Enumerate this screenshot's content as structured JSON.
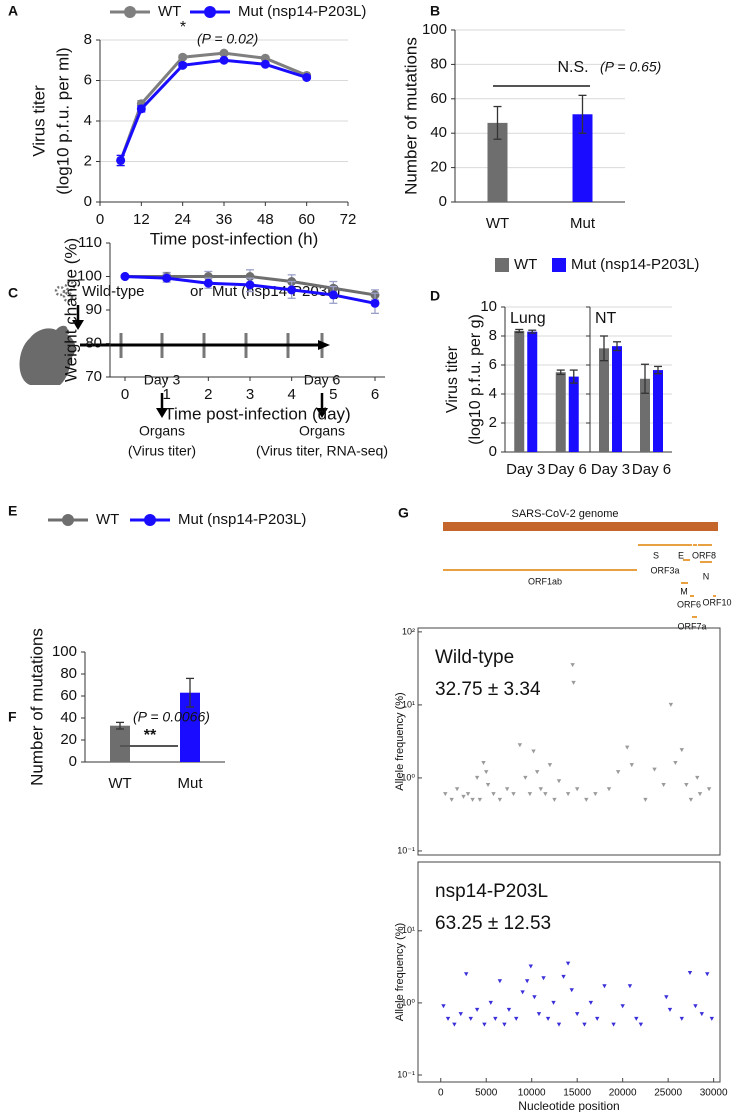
{
  "chart_data": [
    {
      "panel": "A",
      "type": "line",
      "x": [
        6,
        12,
        24,
        36,
        48,
        60
      ],
      "series": [
        {
          "name": "WT",
          "color": "#7f7f7f",
          "values": [
            2.05,
            4.85,
            7.15,
            7.35,
            7.1,
            6.25
          ],
          "errors": [
            0.25,
            0.15,
            0.1,
            0.08,
            0.08,
            0.08
          ]
        },
        {
          "name": "Mut (nsp14-P203L)",
          "color": "#1a0dff",
          "values": [
            2.05,
            4.6,
            6.75,
            7.0,
            6.8,
            6.15
          ],
          "errors": [
            0.25,
            0.15,
            0.1,
            0.08,
            0.08,
            0.08
          ]
        }
      ],
      "xlim": [
        0,
        72
      ],
      "xticks": [
        0,
        12,
        24,
        36,
        48,
        60,
        72
      ],
      "ylim": [
        0,
        8
      ],
      "yticks": [
        0,
        2,
        4,
        6,
        8
      ],
      "grid": true,
      "xlabel": "Time post-infection (h)",
      "ylabel": [
        "Virus titer",
        "(log10 p.f.u. per ml)"
      ],
      "significance": "*",
      "p_value": "(P = 0.02)"
    },
    {
      "panel": "B",
      "type": "bar",
      "categories": [
        "WT",
        "Mut"
      ],
      "values": [
        46,
        51
      ],
      "errors": [
        9.5,
        11
      ],
      "colors": [
        "#6e6e6e",
        "#1a0dff"
      ],
      "ylim": [
        0,
        100
      ],
      "yticks": [
        0,
        20,
        40,
        60,
        80,
        100
      ],
      "grid": true,
      "ylabel": [
        "Number of mutations"
      ],
      "significance": "N.S.",
      "p_value": "(P = 0.65)"
    },
    {
      "panel": "D",
      "type": "bar",
      "series": [
        {
          "name": "WT",
          "color": "#6e6e6e"
        },
        {
          "name": "Mut (nsp14-P203L)",
          "color": "#1a0dff"
        }
      ],
      "categories": [
        "Day 3",
        "Day 6"
      ],
      "facets": [
        {
          "title": "Lung",
          "values": [
            [
              8.35,
              5.5
            ],
            [
              8.3,
              5.2
            ]
          ],
          "errors": [
            [
              0.1,
              0.15
            ],
            [
              0.1,
              0.45
            ]
          ]
        },
        {
          "title": "NT",
          "values": [
            [
              7.15,
              5.05
            ],
            [
              7.3,
              5.65
            ]
          ],
          "errors": [
            [
              0.85,
              1.0
            ],
            [
              0.3,
              0.25
            ]
          ]
        }
      ],
      "ylim": [
        0,
        10
      ],
      "yticks": [
        0,
        2,
        4,
        6,
        8,
        10
      ],
      "grid": true,
      "ylabel": [
        "Virus titer",
        "(log10 p.f.u. per g)"
      ]
    },
    {
      "panel": "E",
      "type": "line",
      "x": [
        0,
        1,
        2,
        3,
        4,
        5,
        6
      ],
      "series": [
        {
          "name": "WT",
          "color": "#6e6e6e",
          "values": [
            100,
            100,
            100,
            100,
            98.5,
            96.5,
            94.5
          ],
          "errors": [
            0,
            1.2,
            1.5,
            2,
            2,
            2,
            1.5
          ]
        },
        {
          "name": "Mut (nsp14-P203L)",
          "color": "#1a0dff",
          "values": [
            100,
            99.5,
            98,
            97.5,
            96,
            94.5,
            92
          ],
          "errors": [
            0,
            1.2,
            1.5,
            2,
            2.5,
            2.5,
            3
          ]
        }
      ],
      "xlim": [
        0,
        6
      ],
      "xticks": [
        0,
        1,
        2,
        3,
        4,
        5,
        6
      ],
      "ylim": [
        70,
        110
      ],
      "yticks": [
        70,
        80,
        90,
        100,
        110
      ],
      "grid": false,
      "xlabel": "Time post-infection (day)",
      "ylabel": [
        "Weight change (%)"
      ]
    },
    {
      "panel": "F",
      "type": "bar",
      "categories": [
        "WT",
        "Mut"
      ],
      "values": [
        33,
        63
      ],
      "errors": [
        3,
        13
      ],
      "colors": [
        "#6e6e6e",
        "#1a0dff"
      ],
      "ylim": [
        0,
        100
      ],
      "yticks": [
        0,
        20,
        40,
        60,
        80,
        100
      ],
      "grid": false,
      "ylabel": [
        "Number of  mutations"
      ],
      "significance": "**",
      "p_value": "(P = 0.0066)"
    },
    {
      "type": "scatter",
      "title": "Wild-type",
      "stat_label": "32.75 ± 3.34",
      "color": "#9a9a9a",
      "log_y": true,
      "x": [
        500,
        1200,
        1800,
        2500,
        3000,
        3500,
        4000,
        4300,
        4700,
        5000,
        5200,
        5800,
        6500,
        7300,
        8000,
        8700,
        9300,
        9800,
        10200,
        10600,
        11000,
        11500,
        12000,
        12500,
        13000,
        14000,
        14500,
        14600,
        15000,
        16000,
        17000,
        18500,
        19500,
        20500,
        21000,
        22500,
        23500,
        24500,
        25300,
        25800,
        26500,
        27000,
        27500,
        28200,
        28500,
        29500
      ],
      "values": [
        0.6,
        0.5,
        0.7,
        0.55,
        0.6,
        0.5,
        1.0,
        0.5,
        1.6,
        1.2,
        0.8,
        0.6,
        0.5,
        0.7,
        0.6,
        2.8,
        1.0,
        0.6,
        2.3,
        1.2,
        0.7,
        0.6,
        1.5,
        0.5,
        0.9,
        0.6,
        35,
        20,
        0.7,
        0.5,
        0.6,
        0.7,
        1.2,
        2.6,
        1.5,
        0.5,
        1.3,
        0.8,
        10,
        1.6,
        2.4,
        0.8,
        0.5,
        1.0,
        0.6,
        0.7
      ],
      "xlim": [
        -2500,
        30700
      ],
      "ylim": [
        0.088,
        113
      ],
      "yticks": [
        {
          "value": 0.1,
          "label": "10⁻¹"
        },
        {
          "value": 1,
          "label": "10⁰"
        },
        {
          "value": 10,
          "label": "10¹"
        },
        {
          "value": 100,
          "label": "10²"
        }
      ],
      "ylabel": [
        "Allele frequency (%)"
      ]
    },
    {
      "type": "scatter",
      "title": "nsp14-P203L",
      "stat_label": "63.25 ± 12.53",
      "color": "#3a2fd9",
      "log_y": true,
      "x": [
        300,
        800,
        1500,
        2200,
        2800,
        3300,
        4000,
        4800,
        5500,
        6000,
        6500,
        7000,
        7500,
        8300,
        9000,
        9500,
        9900,
        10300,
        10800,
        11300,
        11800,
        12400,
        13000,
        13500,
        14000,
        14400,
        15000,
        15800,
        16500,
        17200,
        18000,
        19000,
        20000,
        20800,
        21500,
        22000,
        24800,
        25200,
        26500,
        27400,
        28000,
        28700,
        29300,
        29800
      ],
      "values": [
        0.9,
        0.6,
        0.5,
        0.7,
        2.5,
        0.6,
        0.8,
        0.5,
        1.0,
        0.6,
        2.0,
        0.5,
        0.8,
        0.6,
        1.4,
        2.0,
        3.2,
        1.2,
        0.7,
        2.2,
        0.6,
        1.0,
        0.5,
        2.3,
        3.5,
        1.5,
        0.7,
        0.5,
        1.0,
        0.6,
        1.7,
        0.5,
        0.9,
        1.7,
        0.6,
        0.5,
        1.2,
        0.8,
        0.6,
        2.6,
        0.9,
        0.7,
        2.5,
        0.6
      ],
      "xlim": [
        -2500,
        30700
      ],
      "xticks": [
        0,
        5000,
        10000,
        15000,
        20000,
        25000,
        30000
      ],
      "ylim": [
        0.08,
        90
      ],
      "yticks": [
        {
          "value": 0.1,
          "label": "10⁻¹"
        },
        {
          "value": 1,
          "label": "10⁰"
        },
        {
          "value": 10,
          "label": "10¹"
        }
      ],
      "xlabel": "Nucleotide position",
      "ylabel": [
        "Allele frequency (%)"
      ]
    }
  ],
  "diagram": {
    "panel": "C",
    "strain": "Wild-type",
    "conjunction": "or",
    "alternative": "Mut (nsp14-P203L)",
    "timepoints": [
      {
        "day": "Day 3",
        "sample": "Organs",
        "assay": "(Virus titer)"
      },
      {
        "day": "Day 6",
        "sample": "Organs",
        "assay": "(Virus titer, RNA-seq)"
      }
    ]
  },
  "genome_map": {
    "panel": "G",
    "title": "SARS-CoV-2 genome",
    "color": "#c4662c",
    "gene_color": "#e8a040",
    "genes": [
      "ORF1ab",
      "S",
      "ORF3a",
      "E",
      "M",
      "ORF6",
      "ORF7a",
      "ORF8",
      "N",
      "ORF10"
    ]
  }
}
